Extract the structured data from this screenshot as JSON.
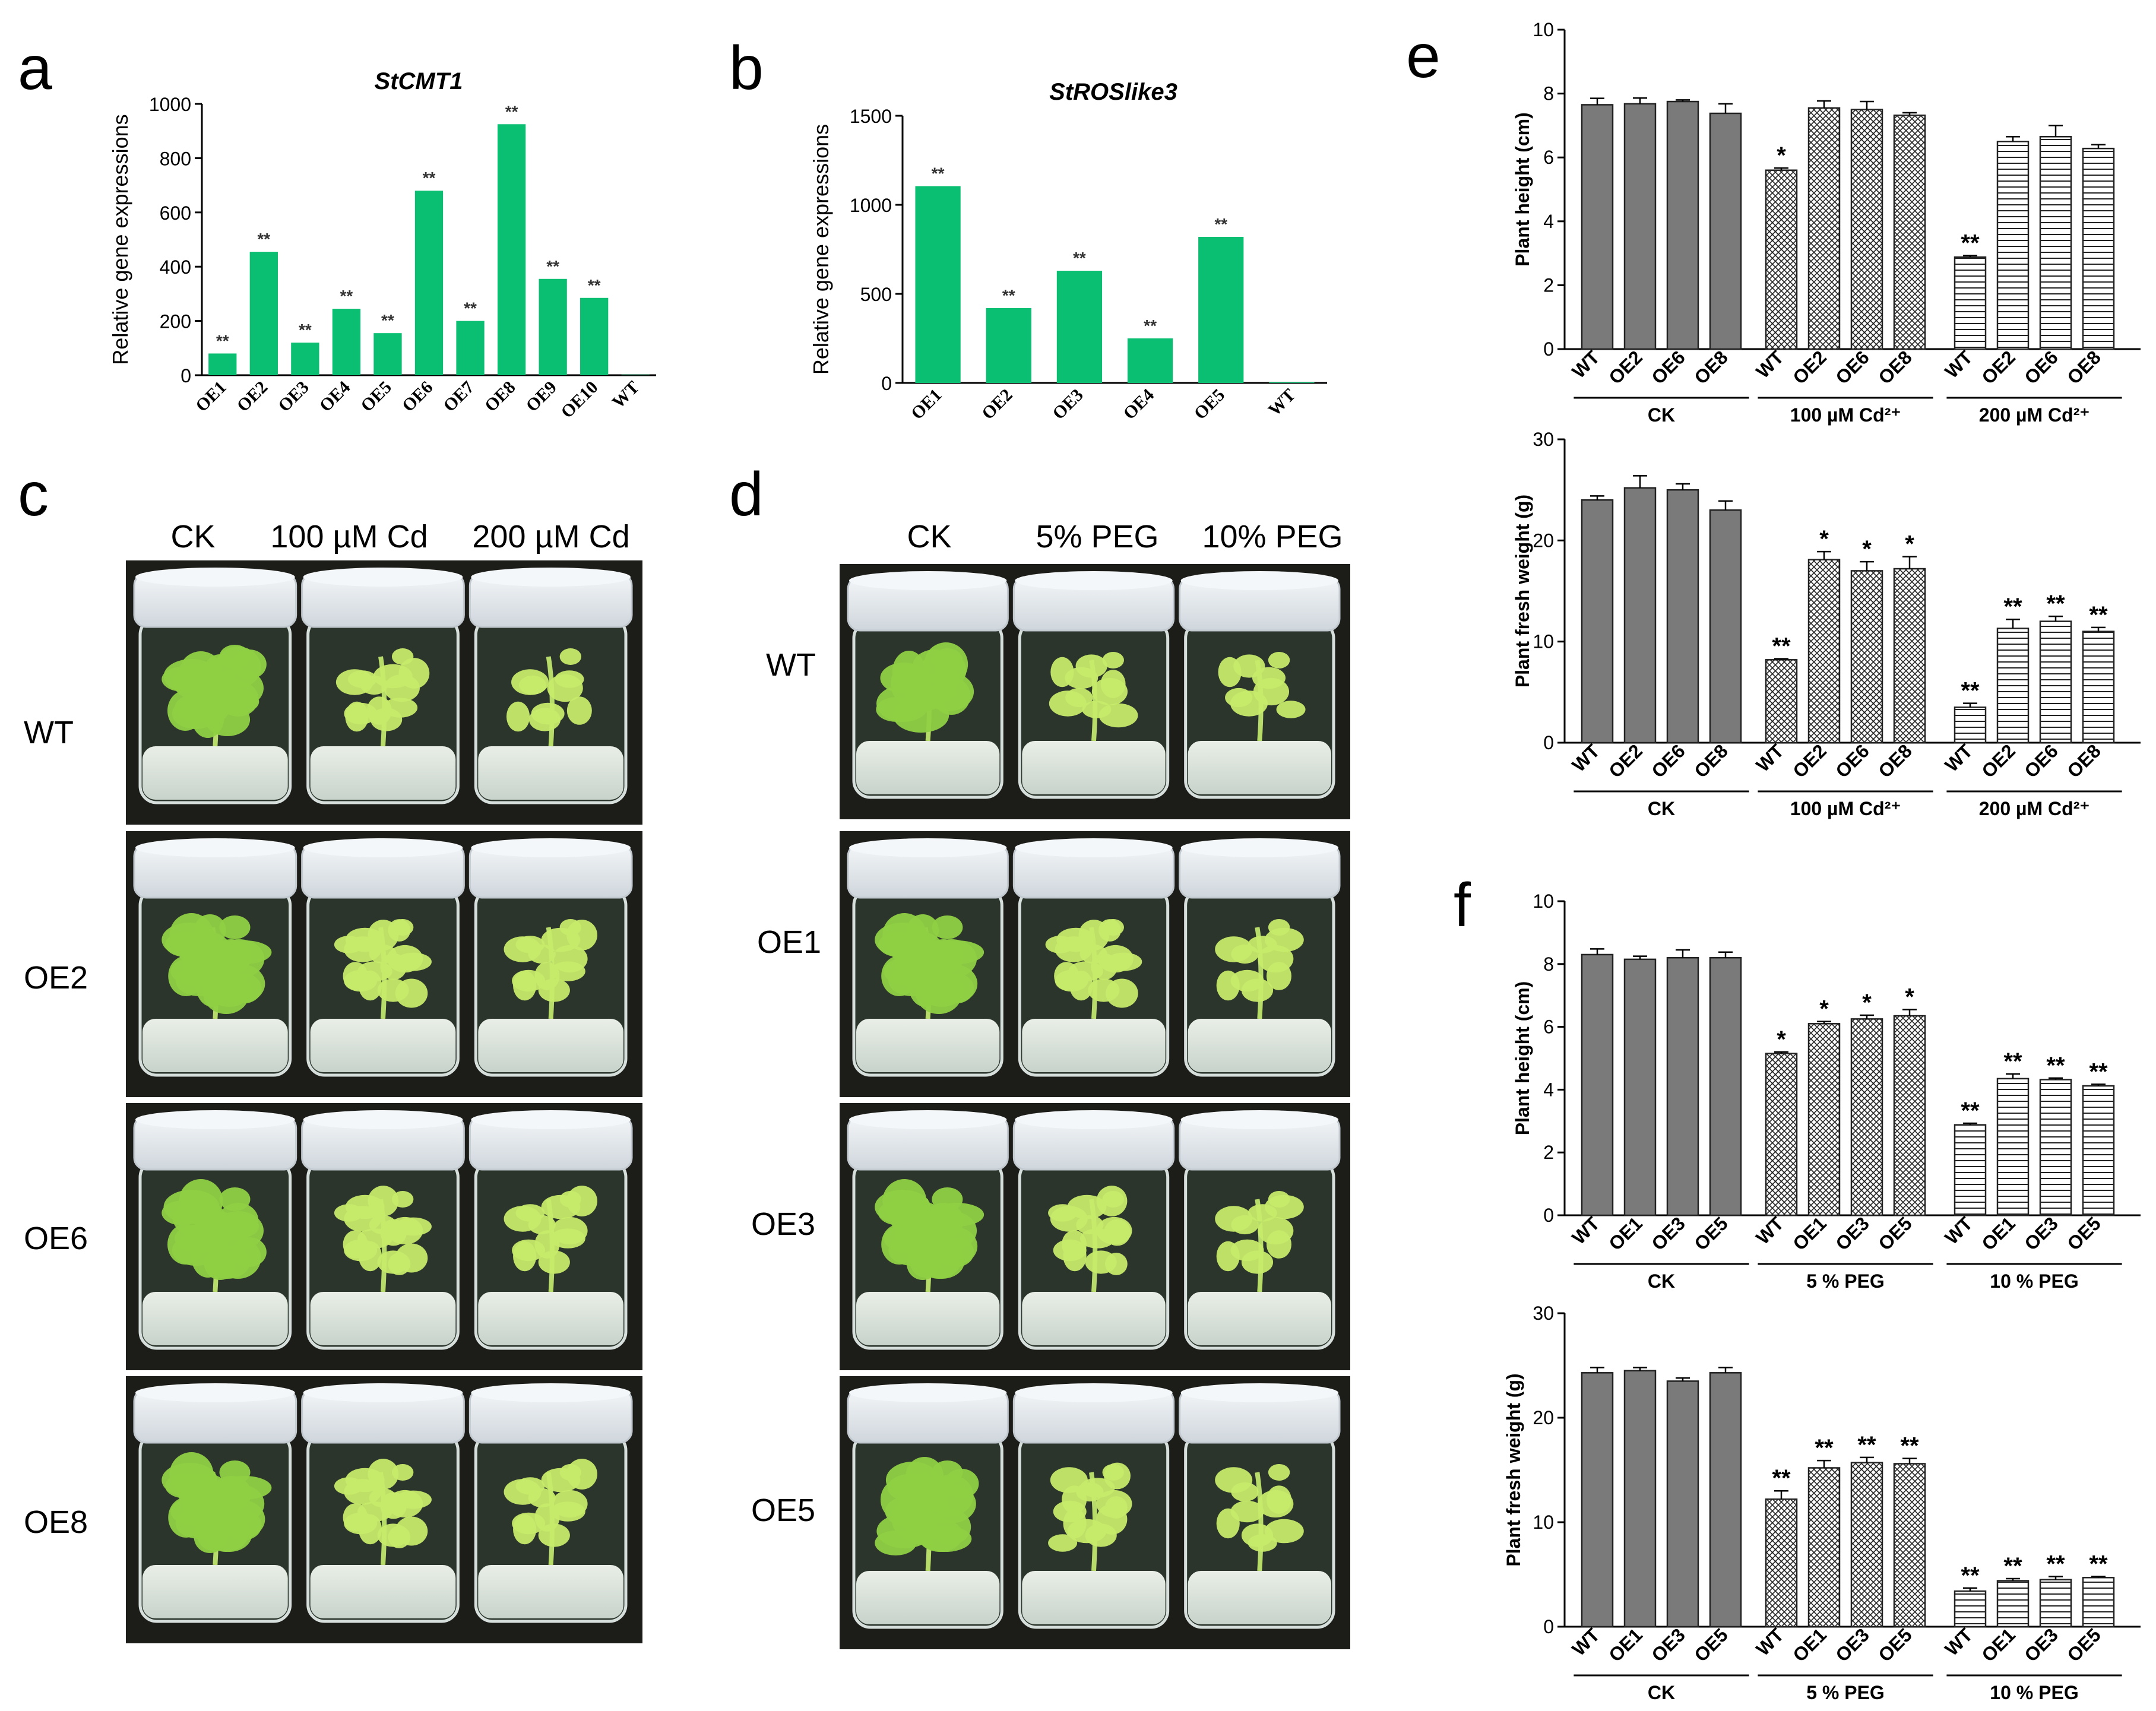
{
  "colors": {
    "green_bar": "#0abf72",
    "grey_bar": "#7a7a7a",
    "photo_dark": "#1c1c18",
    "photo_medium": "#dfe6e2",
    "leaf": "#8fd043",
    "leaf_light": "#c6ea6a",
    "jar_glass": "#d6dfdb",
    "jar_lid": "#e7ecf0"
  },
  "panel_labels": {
    "a": "a",
    "b": "b",
    "c": "c",
    "d": "d",
    "e": "e",
    "f": "f"
  },
  "photos": {
    "c": {
      "conditions": [
        "CK",
        "100 µM Cd",
        "200 µM Cd"
      ],
      "rows": [
        "WT",
        "OE2",
        "OE6",
        "OE8"
      ]
    },
    "d": {
      "conditions": [
        "CK",
        "5% PEG",
        "10% PEG"
      ],
      "rows": [
        "WT",
        "OE1",
        "OE3",
        "OE5"
      ]
    }
  },
  "chart_data": [
    {
      "id": "a",
      "type": "bar",
      "title": "StCMT1",
      "xlabel": "",
      "ylabel": "Relative gene expressions",
      "categories": [
        "OE1",
        "OE2",
        "OE3",
        "OE4",
        "OE5",
        "OE6",
        "OE7",
        "OE8",
        "OE9",
        "OE10",
        "WT"
      ],
      "values": [
        80,
        455,
        120,
        245,
        155,
        680,
        200,
        925,
        355,
        285,
        2
      ],
      "annotations": [
        "**",
        "**",
        "**",
        "**",
        "**",
        "**",
        "**",
        "**",
        "**",
        "**",
        ""
      ],
      "ylim": [
        0,
        1000
      ],
      "yticks": [
        0,
        200,
        400,
        600,
        800,
        1000
      ]
    },
    {
      "id": "b",
      "type": "bar",
      "title": "StROSlike3",
      "xlabel": "",
      "ylabel": "Relative gene expressions",
      "categories": [
        "OE1",
        "OE2",
        "OE3",
        "OE4",
        "OE5",
        "WT"
      ],
      "values": [
        1105,
        420,
        630,
        250,
        820,
        3
      ],
      "annotations": [
        "**",
        "**",
        "**",
        "**",
        "**",
        ""
      ],
      "ylim": [
        0,
        1500
      ],
      "yticks": [
        0,
        500,
        1000,
        1500
      ]
    },
    {
      "id": "e-height",
      "type": "bar",
      "title": "",
      "ylabel": "Plant height (cm)",
      "groups": [
        "CK",
        "100 µM Cd²⁺",
        "200 µM Cd²⁺"
      ],
      "categories": [
        "WT",
        "OE2",
        "OE6",
        "OE8"
      ],
      "series": [
        {
          "name": "CK",
          "values": [
            7.65,
            7.68,
            7.75,
            7.38
          ],
          "errors": [
            0.2,
            0.18,
            0.05,
            0.3
          ],
          "annotations": [
            "",
            "",
            "",
            ""
          ]
        },
        {
          "name": "100 µM Cd²⁺",
          "values": [
            5.6,
            7.55,
            7.5,
            7.32
          ],
          "errors": [
            0.07,
            0.22,
            0.25,
            0.08
          ],
          "annotations": [
            "*",
            "",
            "",
            ""
          ]
        },
        {
          "name": "200 µM Cd²⁺",
          "values": [
            2.88,
            6.5,
            6.65,
            6.28
          ],
          "errors": [
            0.05,
            0.15,
            0.35,
            0.12
          ],
          "annotations": [
            "**",
            "",
            "",
            ""
          ]
        }
      ],
      "ylim": [
        0,
        10
      ],
      "yticks": [
        0,
        2,
        4,
        6,
        8,
        10
      ]
    },
    {
      "id": "e-weight",
      "type": "bar",
      "title": "",
      "ylabel": "Plant fresh weight (g)",
      "groups": [
        "CK",
        "100 µM Cd²⁺",
        "200 µM Cd²⁺"
      ],
      "categories": [
        "WT",
        "OE2",
        "OE6",
        "OE8"
      ],
      "series": [
        {
          "name": "CK",
          "values": [
            24.0,
            25.2,
            25.0,
            23.0
          ],
          "errors": [
            0.4,
            1.2,
            0.6,
            0.9
          ],
          "annotations": [
            "",
            "",
            "",
            ""
          ]
        },
        {
          "name": "100 µM Cd²⁺",
          "values": [
            8.2,
            18.1,
            17.0,
            17.2
          ],
          "errors": [
            0.1,
            0.8,
            0.9,
            1.2
          ],
          "annotations": [
            "**",
            "*",
            "*",
            "*"
          ]
        },
        {
          "name": "200 µM Cd²⁺",
          "values": [
            3.5,
            11.3,
            12.0,
            11.0
          ],
          "errors": [
            0.4,
            0.9,
            0.5,
            0.4
          ],
          "annotations": [
            "**",
            "**",
            "**",
            "**"
          ]
        }
      ],
      "ylim": [
        0,
        30
      ],
      "yticks": [
        0,
        10,
        20,
        30
      ]
    },
    {
      "id": "f-height",
      "type": "bar",
      "title": "",
      "ylabel": "Plant height (cm)",
      "groups": [
        "CK",
        "5 % PEG",
        "10 % PEG"
      ],
      "categories": [
        "WT",
        "OE1",
        "OE3",
        "OE5"
      ],
      "series": [
        {
          "name": "CK",
          "values": [
            8.3,
            8.15,
            8.2,
            8.2
          ],
          "errors": [
            0.18,
            0.1,
            0.25,
            0.18
          ],
          "annotations": [
            "",
            "",
            "",
            ""
          ]
        },
        {
          "name": "5 % PEG",
          "values": [
            5.15,
            6.1,
            6.25,
            6.35
          ],
          "errors": [
            0.05,
            0.07,
            0.12,
            0.2
          ],
          "annotations": [
            "*",
            "*",
            "*",
            "*"
          ]
        },
        {
          "name": "10 % PEG",
          "values": [
            2.88,
            4.35,
            4.32,
            4.12
          ],
          "errors": [
            0.05,
            0.15,
            0.05,
            0.05
          ],
          "annotations": [
            "**",
            "**",
            "**",
            "**"
          ]
        }
      ],
      "ylim": [
        0,
        10
      ],
      "yticks": [
        0,
        2,
        4,
        6,
        8,
        10
      ]
    },
    {
      "id": "f-weight",
      "type": "bar",
      "title": "",
      "ylabel": "Plant fresh weight (g)",
      "groups": [
        "CK",
        "5 % PEG",
        "10 % PEG"
      ],
      "categories": [
        "WT",
        "OE1",
        "OE3",
        "OE5"
      ],
      "series": [
        {
          "name": "CK",
          "values": [
            24.3,
            24.5,
            23.5,
            24.3
          ],
          "errors": [
            0.5,
            0.3,
            0.3,
            0.5
          ],
          "annotations": [
            "",
            "",
            "",
            ""
          ]
        },
        {
          "name": "5 % PEG",
          "values": [
            12.2,
            15.2,
            15.7,
            15.6
          ],
          "errors": [
            0.8,
            0.7,
            0.5,
            0.5
          ],
          "annotations": [
            "**",
            "**",
            "**",
            "**"
          ]
        },
        {
          "name": "10 % PEG",
          "values": [
            3.4,
            4.4,
            4.5,
            4.7
          ],
          "errors": [
            0.3,
            0.2,
            0.3,
            0.1
          ],
          "annotations": [
            "**",
            "**",
            "**",
            "**"
          ]
        }
      ],
      "ylim": [
        0,
        30
      ],
      "yticks": [
        0,
        10,
        20,
        30
      ]
    }
  ]
}
